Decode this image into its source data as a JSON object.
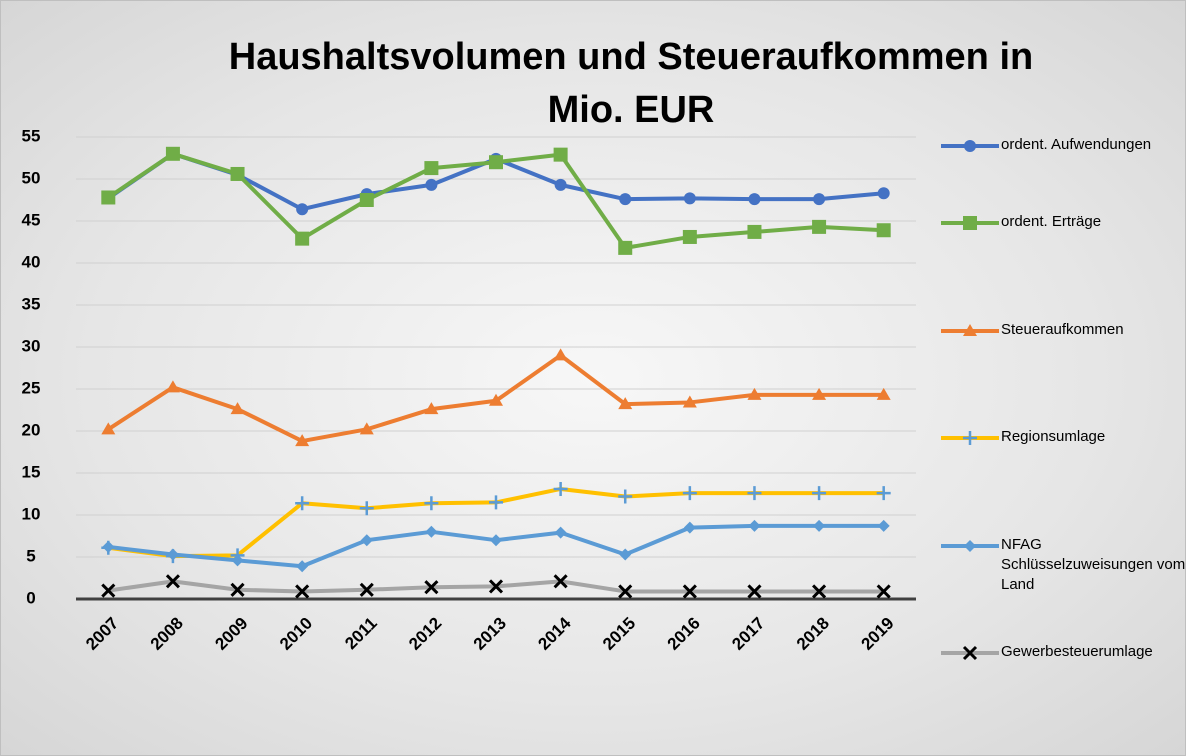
{
  "chart_data": {
    "type": "line",
    "title": "Haushaltsvolumen und Steueraufkommen in Mio. EUR",
    "categories": [
      "2007",
      "2008",
      "2009",
      "2010",
      "2011",
      "2012",
      "2013",
      "2014",
      "2015",
      "2016",
      "2017",
      "2018",
      "2019"
    ],
    "ylim": [
      0,
      55
    ],
    "yticks": [
      0,
      5,
      10,
      15,
      20,
      25,
      30,
      35,
      40,
      45,
      50,
      55
    ],
    "grid": true,
    "legend": "right",
    "series": [
      {
        "name": "ordent. Aufwendungen",
        "color": "#4472c4",
        "marker": "circle",
        "values": [
          47.7,
          53,
          50.5,
          46.4,
          48.2,
          49.3,
          52.4,
          49.3,
          47.6,
          47.7,
          47.6,
          47.6,
          48.3
        ]
      },
      {
        "name": "ordent. Erträge",
        "color": "#70ad47",
        "marker": "square",
        "values": [
          47.8,
          53,
          50.6,
          42.9,
          47.5,
          51.3,
          52,
          52.9,
          41.8,
          43.1,
          43.7,
          44.3,
          43.9
        ]
      },
      {
        "name": "Steueraufkommen",
        "color": "#ed7d31",
        "marker": "triangle",
        "values": [
          20.2,
          25.2,
          22.6,
          18.8,
          20.2,
          22.6,
          23.6,
          29,
          23.2,
          23.4,
          24.3,
          24.3,
          24.3
        ]
      },
      {
        "name": "Regionsumlage",
        "color": "#ffc000",
        "marker": "plus",
        "values": [
          6.1,
          5.1,
          5.2,
          11.4,
          10.8,
          11.4,
          11.5,
          13.1,
          12.2,
          12.6,
          12.6,
          12.6,
          12.6
        ]
      },
      {
        "name": "NFAG Schlüsselzuweisungen vom Land",
        "color": "#5b9bd5",
        "marker": "diamond",
        "values": [
          6.2,
          5.3,
          4.6,
          3.9,
          7,
          8,
          7,
          7.9,
          5.3,
          8.5,
          8.7,
          8.7,
          8.7
        ]
      },
      {
        "name": "Gewerbesteuerumlage",
        "color": "#a5a5a5",
        "marker": "x",
        "values": [
          1,
          2.1,
          1.1,
          0.9,
          1.1,
          1.4,
          1.5,
          2.1,
          0.9,
          0.9,
          0.9,
          0.9,
          0.9
        ]
      }
    ]
  }
}
